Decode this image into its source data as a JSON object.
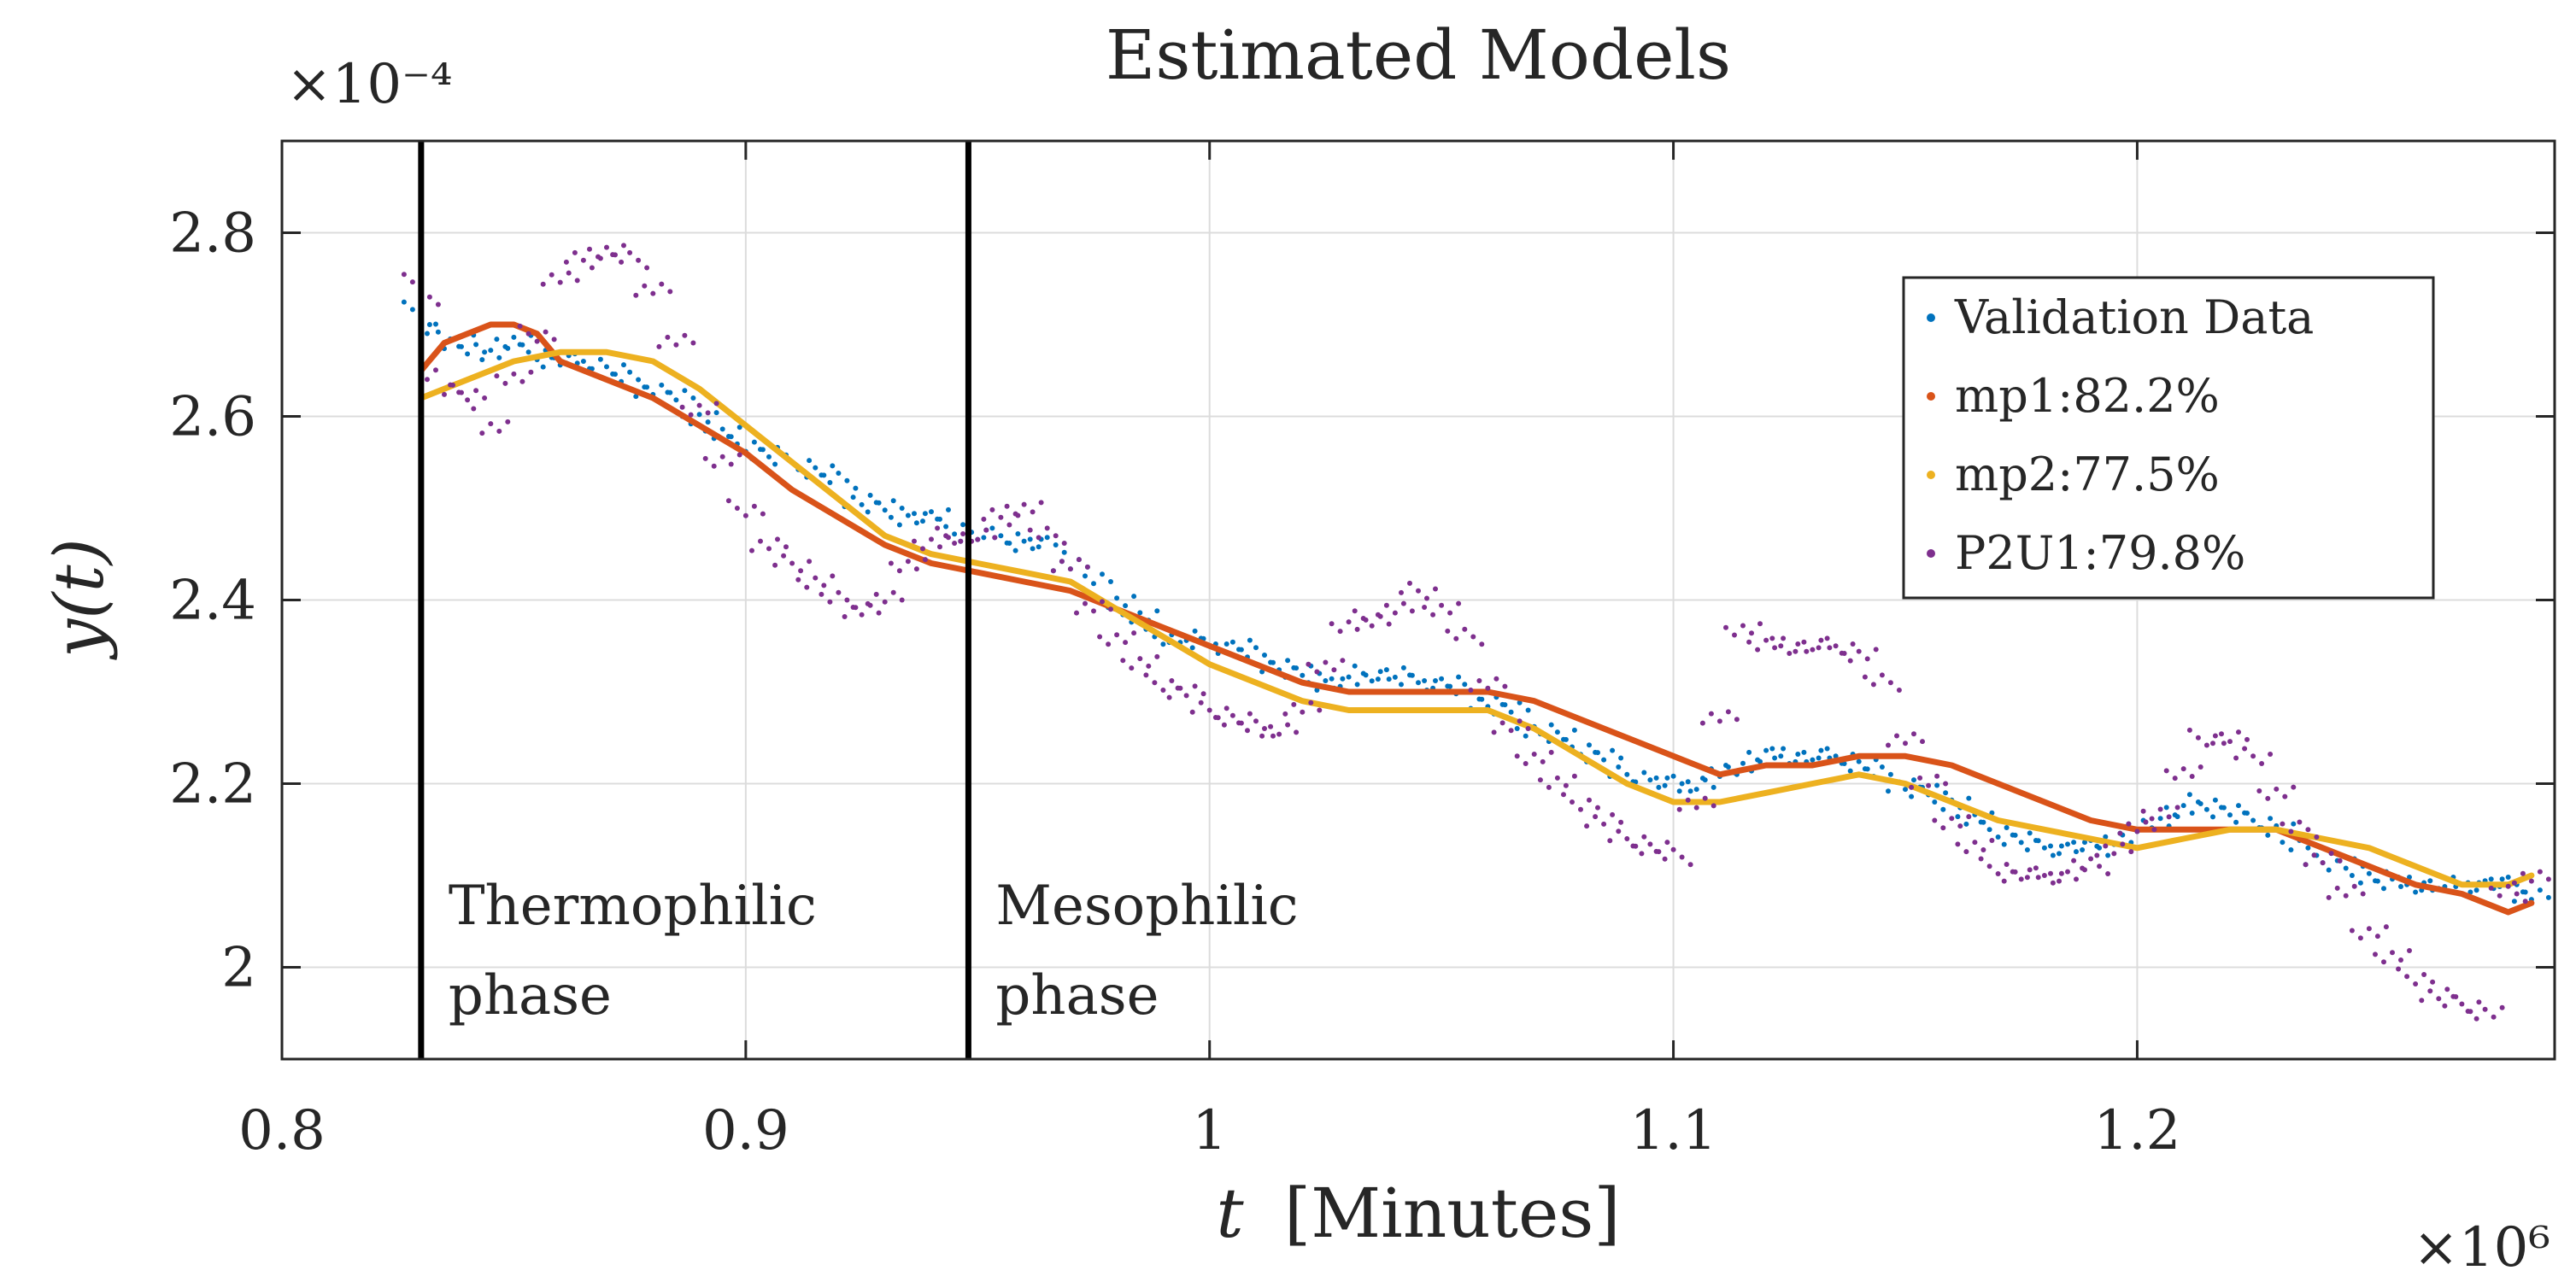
{
  "chart_data": {
    "type": "scatter",
    "title": "Estimated Models",
    "xlabel_var": "t",
    "xlabel_unit": "[Minutes]",
    "ylabel": "y(t)",
    "x_exponent": "×10⁶",
    "y_exponent": "×10⁻⁴",
    "xlim": [
      0.8,
      1.29
    ],
    "ylim": [
      1.9,
      2.9
    ],
    "x_ticks": [
      0.8,
      0.9,
      1.0,
      1.1,
      1.2
    ],
    "x_tick_labels": [
      "0.8",
      "0.9",
      "1",
      "1.1",
      "1.2"
    ],
    "y_ticks": [
      2.0,
      2.2,
      2.4,
      2.6,
      2.8
    ],
    "y_tick_labels": [
      "2",
      "2.2",
      "2.4",
      "2.6",
      "2.8"
    ],
    "grid": true,
    "legend_position": "right",
    "phase_boundaries": [
      0.83,
      0.948
    ],
    "phases": [
      "Thermophilic\nphase",
      "Mesophilic\nphase"
    ],
    "series": [
      {
        "name": "Validation Data",
        "color": "#0072BD",
        "style": "dots",
        "x": [
          0.83,
          0.835,
          0.84,
          0.845,
          0.85,
          0.855,
          0.86,
          0.865,
          0.87,
          0.875,
          0.88,
          0.885,
          0.89,
          0.895,
          0.9,
          0.905,
          0.91,
          0.915,
          0.92,
          0.925,
          0.93,
          0.935,
          0.94,
          0.945,
          0.95,
          0.955,
          0.96,
          0.965,
          0.97,
          0.975,
          0.98,
          0.985,
          0.99,
          0.995,
          1.0,
          1.005,
          1.01,
          1.015,
          1.02,
          1.025,
          1.03,
          1.035,
          1.04,
          1.045,
          1.05,
          1.055,
          1.06,
          1.065,
          1.07,
          1.075,
          1.08,
          1.085,
          1.09,
          1.095,
          1.1,
          1.105,
          1.11,
          1.115,
          1.12,
          1.125,
          1.13,
          1.135,
          1.14,
          1.145,
          1.15,
          1.155,
          1.16,
          1.165,
          1.17,
          1.175,
          1.18,
          1.185,
          1.19,
          1.195,
          1.2,
          1.205,
          1.21,
          1.215,
          1.22,
          1.225,
          1.23,
          1.235,
          1.24,
          1.245,
          1.25,
          1.255,
          1.26,
          1.265,
          1.27,
          1.275,
          1.28,
          1.285
        ],
        "y": [
          2.7,
          2.68,
          2.67,
          2.67,
          2.68,
          2.67,
          2.66,
          2.66,
          2.65,
          2.64,
          2.63,
          2.62,
          2.6,
          2.58,
          2.57,
          2.56,
          2.55,
          2.54,
          2.53,
          2.51,
          2.5,
          2.49,
          2.49,
          2.48,
          2.47,
          2.47,
          2.46,
          2.46,
          2.44,
          2.42,
          2.4,
          2.38,
          2.36,
          2.36,
          2.35,
          2.35,
          2.34,
          2.33,
          2.32,
          2.31,
          2.31,
          2.32,
          2.32,
          2.31,
          2.31,
          2.3,
          2.29,
          2.28,
          2.26,
          2.25,
          2.24,
          2.23,
          2.21,
          2.2,
          2.2,
          2.2,
          2.21,
          2.22,
          2.23,
          2.23,
          2.23,
          2.23,
          2.22,
          2.21,
          2.2,
          2.19,
          2.18,
          2.16,
          2.15,
          2.14,
          2.13,
          2.13,
          2.13,
          2.14,
          2.15,
          2.16,
          2.17,
          2.18,
          2.17,
          2.16,
          2.15,
          2.13,
          2.12,
          2.11,
          2.1,
          2.09,
          2.09,
          2.09,
          2.09,
          2.09,
          2.09,
          2.08
        ]
      },
      {
        "name": "mp1:82.2%",
        "color": "#D95319",
        "style": "line",
        "x": [
          0.83,
          0.835,
          0.84,
          0.845,
          0.85,
          0.855,
          0.86,
          0.87,
          0.88,
          0.89,
          0.9,
          0.91,
          0.92,
          0.93,
          0.94,
          0.95,
          0.96,
          0.97,
          0.98,
          0.99,
          1.0,
          1.01,
          1.02,
          1.03,
          1.04,
          1.05,
          1.06,
          1.07,
          1.08,
          1.09,
          1.1,
          1.11,
          1.12,
          1.13,
          1.14,
          1.15,
          1.16,
          1.17,
          1.18,
          1.19,
          1.2,
          1.21,
          1.22,
          1.23,
          1.24,
          1.25,
          1.26,
          1.27,
          1.28,
          1.285
        ],
        "y": [
          2.65,
          2.68,
          2.69,
          2.7,
          2.7,
          2.69,
          2.66,
          2.64,
          2.62,
          2.59,
          2.56,
          2.52,
          2.49,
          2.46,
          2.44,
          2.43,
          2.42,
          2.41,
          2.39,
          2.37,
          2.35,
          2.33,
          2.31,
          2.3,
          2.3,
          2.3,
          2.3,
          2.29,
          2.27,
          2.25,
          2.23,
          2.21,
          2.22,
          2.22,
          2.23,
          2.23,
          2.22,
          2.2,
          2.18,
          2.16,
          2.15,
          2.15,
          2.15,
          2.15,
          2.13,
          2.11,
          2.09,
          2.08,
          2.06,
          2.07
        ]
      },
      {
        "name": "mp2:77.5%",
        "color": "#EDB120",
        "style": "line",
        "x": [
          0.83,
          0.84,
          0.85,
          0.86,
          0.87,
          0.88,
          0.89,
          0.9,
          0.91,
          0.92,
          0.93,
          0.94,
          0.95,
          0.96,
          0.97,
          0.98,
          0.99,
          1.0,
          1.01,
          1.02,
          1.03,
          1.04,
          1.05,
          1.06,
          1.07,
          1.08,
          1.09,
          1.1,
          1.11,
          1.12,
          1.13,
          1.14,
          1.15,
          1.16,
          1.17,
          1.18,
          1.19,
          1.2,
          1.21,
          1.22,
          1.23,
          1.24,
          1.25,
          1.26,
          1.27,
          1.28,
          1.285
        ],
        "y": [
          2.62,
          2.64,
          2.66,
          2.67,
          2.67,
          2.66,
          2.63,
          2.59,
          2.55,
          2.51,
          2.47,
          2.45,
          2.44,
          2.43,
          2.42,
          2.39,
          2.36,
          2.33,
          2.31,
          2.29,
          2.28,
          2.28,
          2.28,
          2.28,
          2.26,
          2.23,
          2.2,
          2.18,
          2.18,
          2.19,
          2.2,
          2.21,
          2.2,
          2.18,
          2.16,
          2.15,
          2.14,
          2.13,
          2.14,
          2.15,
          2.15,
          2.14,
          2.13,
          2.11,
          2.09,
          2.09,
          2.1
        ]
      },
      {
        "name": "P2U1:79.8%",
        "color": "#7E2F8E",
        "style": "dots",
        "x": [
          0.83,
          0.835,
          0.84,
          0.845,
          0.85,
          0.855,
          0.86,
          0.865,
          0.87,
          0.875,
          0.88,
          0.885,
          0.89,
          0.895,
          0.9,
          0.905,
          0.91,
          0.915,
          0.92,
          0.925,
          0.93,
          0.935,
          0.94,
          0.945,
          0.95,
          0.955,
          0.96,
          0.965,
          0.97,
          0.975,
          0.98,
          0.985,
          0.99,
          0.995,
          1.0,
          1.005,
          1.01,
          1.015,
          1.02,
          1.025,
          1.03,
          1.035,
          1.04,
          1.045,
          1.05,
          1.055,
          1.06,
          1.065,
          1.07,
          1.075,
          1.08,
          1.085,
          1.09,
          1.095,
          1.1,
          1.105,
          1.11,
          1.115,
          1.12,
          1.125,
          1.13,
          1.135,
          1.14,
          1.145,
          1.15,
          1.155,
          1.16,
          1.165,
          1.17,
          1.175,
          1.18,
          1.185,
          1.19,
          1.195,
          1.2,
          1.205,
          1.21,
          1.215,
          1.22,
          1.225,
          1.23,
          1.235,
          1.24,
          1.245,
          1.25,
          1.255,
          1.26,
          1.265,
          1.27,
          1.275,
          1.28,
          1.285
        ],
        "y": [
          2.73,
          2.63,
          2.62,
          2.59,
          2.64,
          2.69,
          2.75,
          2.77,
          2.78,
          2.77,
          2.74,
          2.68,
          2.61,
          2.55,
          2.5,
          2.46,
          2.44,
          2.42,
          2.4,
          2.39,
          2.4,
          2.44,
          2.46,
          2.47,
          2.47,
          2.49,
          2.5,
          2.47,
          2.44,
          2.39,
          2.36,
          2.33,
          2.31,
          2.3,
          2.28,
          2.27,
          2.26,
          2.26,
          2.28,
          2.33,
          2.37,
          2.38,
          2.39,
          2.41,
          2.39,
          2.36,
          2.31,
          2.26,
          2.23,
          2.2,
          2.18,
          2.16,
          2.14,
          2.13,
          2.12,
          2.18,
          2.27,
          2.37,
          2.35,
          2.35,
          2.35,
          2.35,
          2.34,
          2.31,
          2.25,
          2.2,
          2.16,
          2.13,
          2.11,
          2.1,
          2.1,
          2.1,
          2.11,
          2.13,
          2.15,
          2.17,
          2.21,
          2.25,
          2.25,
          2.23,
          2.19,
          2.15,
          2.12,
          2.08,
          2.04,
          2.01,
          1.99,
          1.97,
          1.96,
          1.95,
          2.08,
          2.1
        ]
      }
    ]
  }
}
